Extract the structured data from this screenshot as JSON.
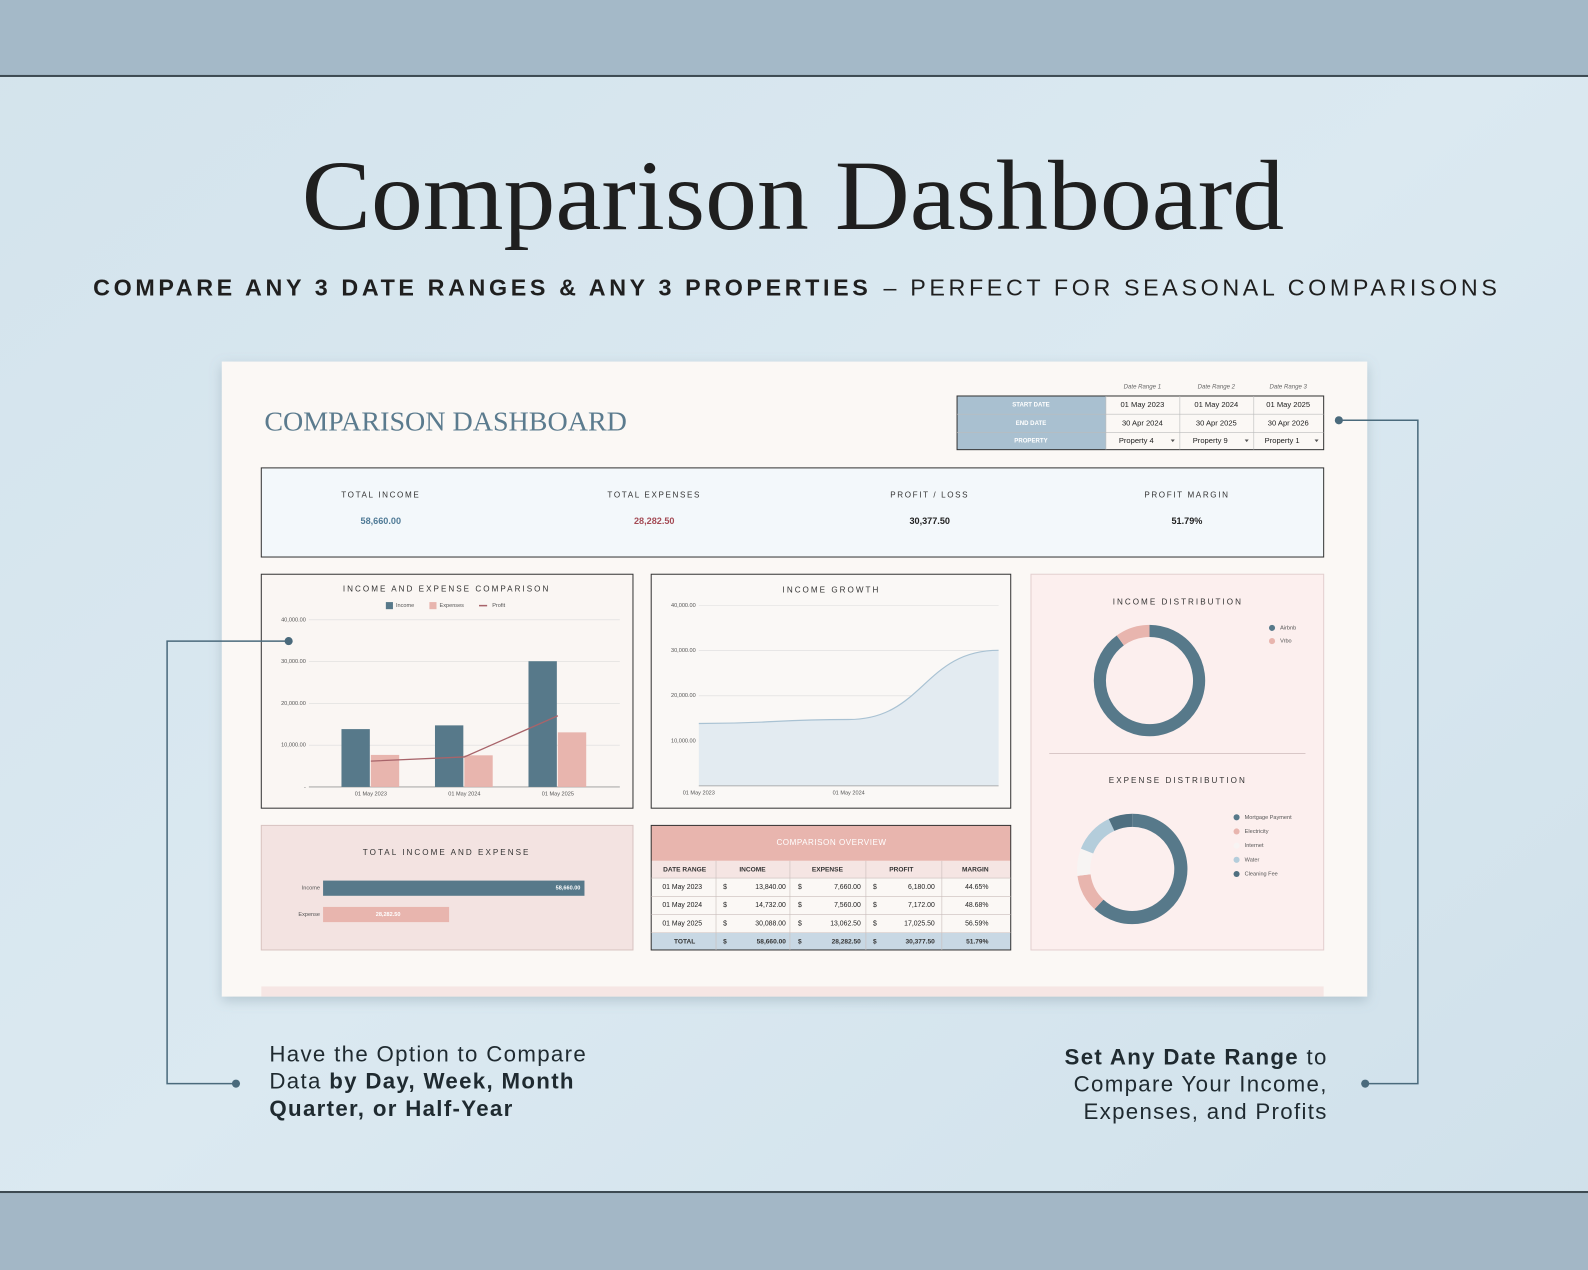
{
  "header": {
    "title": "Comparison Dashboard",
    "subtitle": [
      "COMPARE ANY 3 DATE RANGES & ANY 3 PROPERTIES",
      "– PERFECT FOR SEASONAL COMPARISONS"
    ]
  },
  "dashboard": {
    "title": "COMPARISON DASHBOARD",
    "date_ranges": {
      "columns": [
        "Date Range 1",
        "Date Range 2",
        "Date Range 3"
      ],
      "rows": [
        [
          "START DATE",
          "01 May 2023",
          "01 May 2024",
          "01 May 2025"
        ],
        [
          "END DATE",
          "30 Apr 2024",
          "30 Apr 2025",
          "30 Apr 2026"
        ],
        [
          "PROPERTY",
          "Property 4",
          "Property 9",
          "Property 1"
        ]
      ]
    },
    "kpis": [
      {
        "label": "TOTAL INCOME",
        "value": "58,660.00",
        "color": "#4f7a96"
      },
      {
        "label": "TOTAL EXPENSES",
        "value": "28,282.50",
        "color": "#a44b55"
      },
      {
        "label": "PROFIT / LOSS",
        "value": "30,377.50",
        "color": "#222222"
      },
      {
        "label": "PROFIT MARGIN",
        "value": "51.79%",
        "color": "#222222"
      }
    ],
    "charts": [
      {
        "type": "bar",
        "title": "INCOME AND EXPENSE COMPARISON",
        "categories": [
          "01 May 2023",
          "01 May 2024",
          "01 May 2025"
        ],
        "series": [
          {
            "name": "Income",
            "color": "#57798a",
            "values": [
              13840,
              14732,
              30088
            ]
          },
          {
            "name": "Expenses",
            "color": "#e8b5ae",
            "values": [
              7660,
              7560,
              13062.5
            ]
          },
          {
            "name": "Profit",
            "type": "line",
            "color": "#a8646a",
            "values": [
              6180,
              7172,
              17025.5
            ]
          }
        ],
        "ylim": [
          0,
          40000
        ],
        "yticks": [
          {
            "value": 0,
            "label": "-"
          },
          {
            "value": 10000,
            "label": "10,000.00"
          },
          {
            "value": 20000,
            "label": "20,000.00"
          },
          {
            "value": 30000,
            "label": "30,000.00"
          },
          {
            "value": 40000,
            "label": "40,000.00"
          }
        ],
        "grid": true
      },
      {
        "type": "area",
        "title": "INCOME GROWTH",
        "categories": [
          "01 May 2023",
          "01 May 2024",
          null
        ],
        "values": [
          13840,
          14732,
          30088
        ],
        "color": "#a9c2d3",
        "fill": "#e3ebf1",
        "ylim": [
          0,
          40000
        ],
        "yticks": [
          {
            "value": 10000,
            "label": "10,000.00"
          },
          {
            "value": 20000,
            "label": "20,000.00"
          },
          {
            "value": 30000,
            "label": "30,000.00"
          },
          {
            "value": 40000,
            "label": "40,000.00"
          }
        ],
        "grid": true
      },
      {
        "type": "donut",
        "title": "INCOME DISTRIBUTION",
        "categories": [
          "Airbnb",
          "Vrbo"
        ],
        "values": [
          90,
          10
        ],
        "colors": [
          "#57798a",
          "#e8b5ae"
        ]
      },
      {
        "type": "donut",
        "title": "EXPENSE DISTRIBUTION",
        "categories": [
          "Mortgage Payment",
          "Electricity",
          "Internet",
          "Water",
          "Cleaning Fee"
        ],
        "values": [
          62,
          11,
          8,
          12,
          7
        ],
        "colors": [
          "#57798a",
          "#e8b5ae",
          "#f7f4f3",
          "#b4cddb",
          "#4f6f80"
        ]
      },
      {
        "type": "hbar",
        "title": "TOTAL INCOME AND EXPENSE",
        "categories": [
          "Income",
          "Expense"
        ],
        "values": [
          58660,
          28282.5
        ],
        "value_labels": [
          "58,660.00",
          "28,282.50"
        ],
        "colors": [
          "#57798a",
          "#e8b5ae"
        ],
        "xlim": [
          0,
          60000
        ]
      }
    ],
    "overview": {
      "title": "COMPARISON OVERVIEW",
      "headers": [
        "DATE RANGE",
        "INCOME",
        "EXPENSE",
        "PROFIT",
        "MARGIN"
      ],
      "rows": [
        [
          "01 May 2023",
          "$",
          "13,840.00",
          "$",
          "7,660.00",
          "$",
          "6,180.00",
          "44.65%"
        ],
        [
          "01 May 2024",
          "$",
          "14,732.00",
          "$",
          "7,560.00",
          "$",
          "7,172.00",
          "48.68%"
        ],
        [
          "01 May 2025",
          "$",
          "30,088.00",
          "$",
          "13,062.50",
          "$",
          "17,025.50",
          "56.59%"
        ]
      ],
      "total": [
        "TOTAL",
        "$",
        "58,660.00",
        "$",
        "28,282.50",
        "$",
        "30,377.50",
        "51.79%"
      ]
    }
  },
  "callouts": {
    "left": [
      [
        {
          "text": "Have the Option to Compare",
          "bold": false
        }
      ],
      [
        {
          "text": "Data ",
          "bold": false
        },
        {
          "text": "by Day, Week, Month",
          "bold": true
        }
      ],
      [
        {
          "text": "Quarter, or Half-Year",
          "bold": true
        }
      ]
    ],
    "right": [
      [
        {
          "text": "Set Any Date Range",
          "bold": true
        },
        {
          "text": " to",
          "bold": false
        }
      ],
      [
        {
          "text": "Compare Your Income,",
          "bold": false
        }
      ],
      [
        {
          "text": "Expenses, and Profits",
          "bold": false
        }
      ]
    ]
  }
}
